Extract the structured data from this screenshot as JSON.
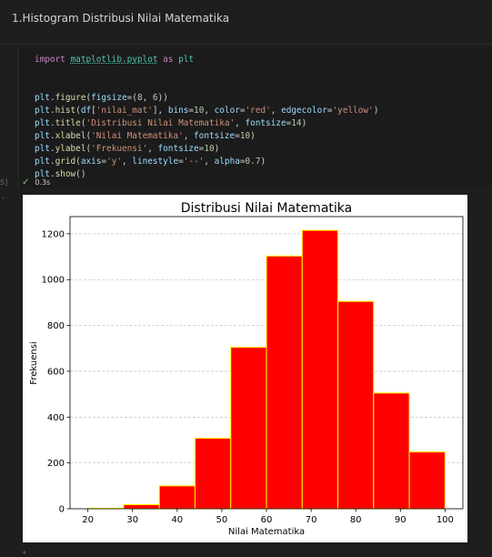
{
  "notebook": {
    "heading": "1.Histogram Distribusi Nilai Matematika",
    "exec_count": "5]",
    "status_time": "0.3s",
    "out_marker": "-"
  },
  "code": {
    "line1": {
      "kw1": "import",
      "mod": "matplotlib.pyplot",
      "kw2": "as",
      "alias": "plt"
    },
    "line2": {
      "obj": "plt",
      "fn": "figure",
      "p1": "(",
      "arg": "figsize",
      "eq": "=(",
      "n1": "8",
      "c": ", ",
      "n2": "6",
      "end": "))"
    },
    "line3": {
      "obj": "plt",
      "fn": "hist",
      "p1": "(",
      "v1": "df",
      "b1": "[",
      "s1": "'nilai_mat'",
      "b2": "], ",
      "a1": "bins",
      "eq1": "=",
      "n1": "10",
      "c1": ", ",
      "a2": "color",
      "eq2": "=",
      "s2": "'red'",
      "c2": ", ",
      "a3": "edgecolor",
      "eq3": "=",
      "s3": "'yellow'",
      "end": ")"
    },
    "line4": {
      "obj": "plt",
      "fn": "title",
      "p1": "(",
      "s1": "'Distribusi Nilai Matematika'",
      "c1": ", ",
      "a1": "fontsize",
      "eq1": "=",
      "n1": "14",
      "end": ")"
    },
    "line5": {
      "obj": "plt",
      "fn": "xlabel",
      "p1": "(",
      "s1": "'Nilai Matematika'",
      "c1": ", ",
      "a1": "fontsize",
      "eq1": "=",
      "n1": "10",
      "end": ")"
    },
    "line6": {
      "obj": "plt",
      "fn": "ylabel",
      "p1": "(",
      "s1": "'Frekuensi'",
      "c1": ", ",
      "a1": "fontsize",
      "eq1": "=",
      "n1": "10",
      "end": ")"
    },
    "line7": {
      "obj": "plt",
      "fn": "grid",
      "p1": "(",
      "a1": "axis",
      "eq1": "=",
      "s1": "'y'",
      "c1": ", ",
      "a2": "linestyle",
      "eq2": "=",
      "s2": "'--'",
      "c2": ", ",
      "a3": "alpha",
      "eq3": "=",
      "n1": "0.7",
      "end": ")"
    },
    "line8": {
      "obj": "plt",
      "fn": "show",
      "end": "()"
    }
  },
  "chart_data": {
    "type": "bar",
    "title": "Distribusi Nilai Matematika",
    "xlabel": "Nilai Matematika",
    "ylabel": "Frekuensi",
    "bin_edges": [
      20,
      28,
      36,
      44,
      52,
      60,
      68,
      76,
      84,
      92,
      100
    ],
    "values": [
      2,
      18,
      100,
      308,
      705,
      1103,
      1215,
      905,
      505,
      248
    ],
    "xlim": [
      16.0,
      104.0
    ],
    "ylim": [
      0,
      1275
    ],
    "xticks": [
      20,
      30,
      40,
      50,
      60,
      70,
      80,
      90,
      100
    ],
    "yticks": [
      0,
      200,
      400,
      600,
      800,
      1000,
      1200
    ],
    "bar_color": "#ff0000",
    "edge_color": "#ffff00",
    "grid": "y dashed"
  }
}
